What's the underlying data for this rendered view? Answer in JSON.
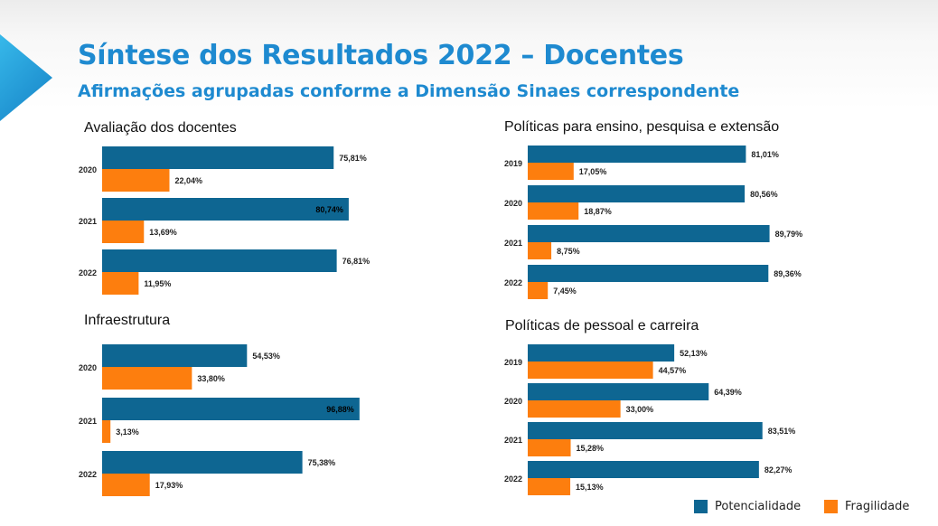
{
  "header": {
    "title": "Síntese dos Resultados 2022 – Docentes",
    "subtitle": "Afirmações agrupadas conforme a Dimensão Sinaes correspondente"
  },
  "colors": {
    "potencialidade": "#0e6692",
    "fragilidade": "#fd7e0e"
  },
  "legend": {
    "potencialidade": "Potencialidade",
    "fragilidade": "Fragilidade"
  },
  "chart_data": [
    {
      "type": "bar",
      "orientation": "horizontal",
      "title": "Avaliação dos docentes",
      "categories": [
        "2020",
        "2021",
        "2022"
      ],
      "series": [
        {
          "name": "Potencialidade",
          "values": [
            75.81,
            80.74,
            76.81
          ],
          "labels": [
            "75,81%",
            "80,74%",
            "76,81%"
          ]
        },
        {
          "name": "Fragilidade",
          "values": [
            22.04,
            13.69,
            11.95
          ],
          "labels": [
            "22,04%",
            "13,69%",
            "11,95%"
          ]
        }
      ],
      "xlim": [
        0,
        100
      ],
      "grid": false
    },
    {
      "type": "bar",
      "orientation": "horizontal",
      "title": "Infraestrutura",
      "categories": [
        "2020",
        "2021",
        "2022"
      ],
      "series": [
        {
          "name": "Potencialidade",
          "values": [
            54.53,
            96.88,
            75.38
          ],
          "labels": [
            "54,53%",
            "96,88%",
            "75,38%"
          ]
        },
        {
          "name": "Fragilidade",
          "values": [
            33.8,
            3.13,
            17.93
          ],
          "labels": [
            "33,80%",
            "3,13%",
            "17,93%"
          ]
        }
      ],
      "xlim": [
        0,
        100
      ],
      "grid": false
    },
    {
      "type": "bar",
      "orientation": "horizontal",
      "title": "Políticas para ensino, pesquisa e extensão",
      "categories": [
        "2019",
        "2020",
        "2021",
        "2022"
      ],
      "series": [
        {
          "name": "Potencialidade",
          "values": [
            81.01,
            80.56,
            89.79,
            89.36
          ],
          "labels": [
            "81,01%",
            "80,56%",
            "89,79%",
            "89,36%"
          ]
        },
        {
          "name": "Fragilidade",
          "values": [
            17.05,
            18.87,
            8.75,
            7.45
          ],
          "labels": [
            "17,05%",
            "18,87%",
            "8,75%",
            "7,45%"
          ]
        }
      ],
      "xlim": [
        0,
        100
      ],
      "grid": false
    },
    {
      "type": "bar",
      "orientation": "horizontal",
      "title": "Políticas de pessoal e carreira",
      "categories": [
        "2019",
        "2020",
        "2021",
        "2022"
      ],
      "series": [
        {
          "name": "Potencialidade",
          "values": [
            52.13,
            64.39,
            83.51,
            82.27
          ],
          "labels": [
            "52,13%",
            "64,39%",
            "83,51%",
            "82,27%"
          ]
        },
        {
          "name": "Fragilidade",
          "values": [
            44.57,
            33.0,
            15.28,
            15.13
          ],
          "labels": [
            "44,57%",
            "33,00%",
            "15,28%",
            "15,13%"
          ]
        }
      ],
      "xlim": [
        0,
        100
      ],
      "grid": false
    }
  ]
}
